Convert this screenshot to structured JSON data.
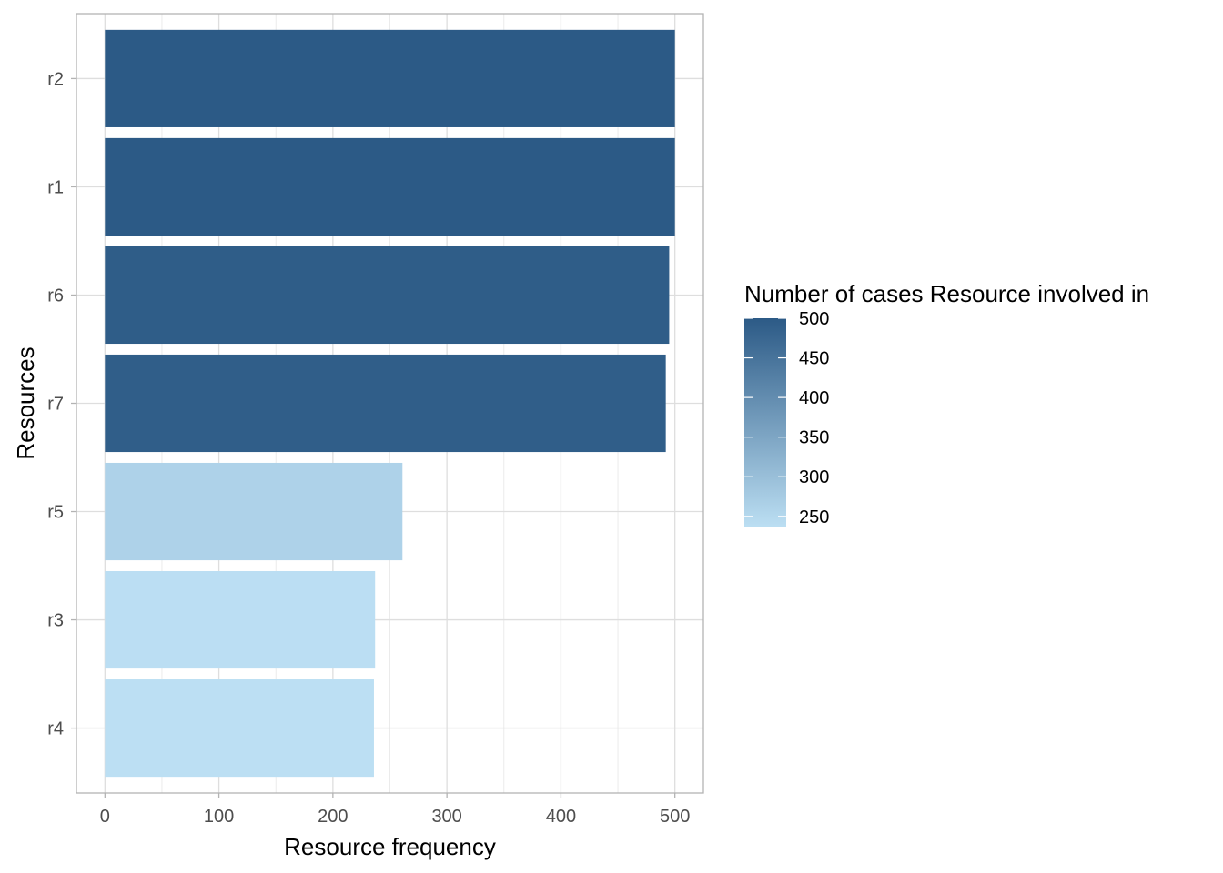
{
  "chart_data": {
    "type": "bar",
    "orientation": "horizontal",
    "xlabel": "Resource frequency",
    "ylabel": "Resources",
    "xlim": [
      -25,
      525
    ],
    "x_ticks": [
      0,
      100,
      200,
      300,
      400,
      500
    ],
    "x_minor_ticks": [
      50,
      150,
      250,
      350,
      450
    ],
    "grid": true,
    "categories": [
      "r2",
      "r1",
      "r6",
      "r7",
      "r5",
      "r3",
      "r4"
    ],
    "values": [
      500,
      500,
      495,
      492,
      261,
      237,
      236
    ],
    "fill_values": [
      500,
      500,
      495,
      492,
      261,
      237,
      236
    ],
    "legend": {
      "title": "Number of cases Resource involved in",
      "position": "right",
      "ticks": [
        500,
        450,
        400,
        350,
        300,
        250
      ],
      "range": [
        236,
        500
      ],
      "color_low": "#bcdff3",
      "color_high": "#2c5a86"
    }
  }
}
